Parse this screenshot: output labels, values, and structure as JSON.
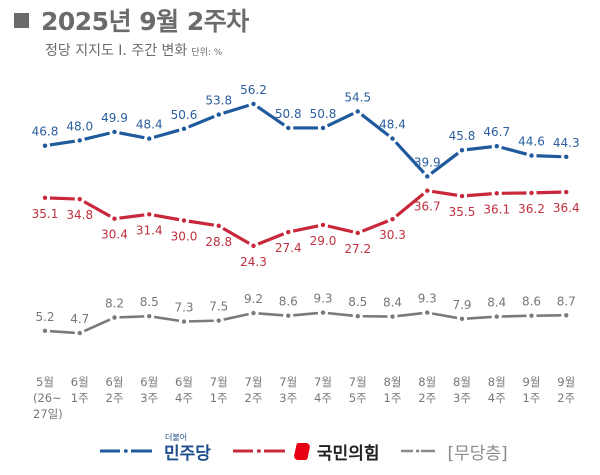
{
  "header": {
    "title": "2025년 9월 2주차",
    "subtitle": "정당 지지도 Ⅰ. 주간 변화",
    "unit": "단위: %"
  },
  "colors": {
    "democratic": "#1f5a9c",
    "ppp": "#c8283a",
    "nonpartisan": "#7a7a7a",
    "title": "#6b6b6b",
    "axis_text": "#777777"
  },
  "chart_data": {
    "type": "line",
    "title": "2025년 9월 2주차 정당 지지도 Ⅰ. 주간 변화",
    "ylabel": "단위: %",
    "xlabel": "",
    "grid": false,
    "legend_position": "bottom",
    "categories": [
      [
        "5월",
        "(26~",
        "27일)"
      ],
      [
        "6월",
        "1주"
      ],
      [
        "6월",
        "2주"
      ],
      [
        "6월",
        "3주"
      ],
      [
        "6월",
        "4주"
      ],
      [
        "7월",
        "1주"
      ],
      [
        "7월",
        "2주"
      ],
      [
        "7월",
        "3주"
      ],
      [
        "7월",
        "4주"
      ],
      [
        "7월",
        "5주"
      ],
      [
        "8월",
        "1주"
      ],
      [
        "8월",
        "2주"
      ],
      [
        "8월",
        "3주"
      ],
      [
        "8월",
        "4주"
      ],
      [
        "9월",
        "1주"
      ],
      [
        "9월",
        "2주"
      ]
    ],
    "series": [
      {
        "name": "더불어민주당",
        "key": "democratic",
        "label_position": "above",
        "values": [
          46.8,
          48.0,
          49.9,
          48.4,
          50.6,
          53.8,
          56.2,
          50.8,
          50.8,
          54.5,
          48.4,
          39.9,
          45.8,
          46.7,
          44.6,
          44.3
        ]
      },
      {
        "name": "국민의힘",
        "key": "ppp",
        "label_position": "below",
        "values": [
          35.1,
          34.8,
          30.4,
          31.4,
          30.0,
          28.8,
          24.3,
          27.4,
          29.0,
          27.2,
          30.3,
          36.7,
          35.5,
          36.1,
          36.2,
          36.4
        ]
      },
      {
        "name": "[무당층]",
        "key": "nonpartisan",
        "label_position": "above",
        "values": [
          5.2,
          4.7,
          8.2,
          8.5,
          7.3,
          7.5,
          9.2,
          8.6,
          9.3,
          8.5,
          8.4,
          9.3,
          7.9,
          8.4,
          8.6,
          8.7
        ]
      }
    ]
  },
  "legend": {
    "democratic_small": "더불어",
    "democratic_label": "민주당",
    "ppp_label": "국민의힘",
    "nonpartisan_label": "[무당층]"
  }
}
